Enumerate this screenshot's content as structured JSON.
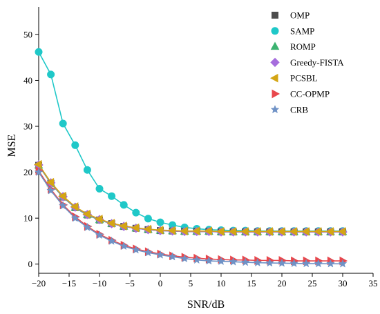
{
  "chart_data": {
    "type": "line",
    "title": "",
    "xlabel": "SNR/dB",
    "ylabel": "MSE",
    "xlim": [
      -20,
      35
    ],
    "ylim": [
      -2,
      56
    ],
    "xticks": [
      -20,
      -15,
      -10,
      -5,
      0,
      5,
      10,
      15,
      20,
      25,
      30,
      35
    ],
    "yticks": [
      0,
      10,
      20,
      30,
      40,
      50
    ],
    "grid": false,
    "legend_position": "top-right",
    "x": [
      -20,
      -18,
      -16,
      -14,
      -12,
      -10,
      -8,
      -6,
      -4,
      -2,
      0,
      2,
      4,
      6,
      8,
      10,
      12,
      14,
      16,
      18,
      20,
      22,
      24,
      26,
      28,
      30
    ],
    "series": [
      {
        "name": "OMP",
        "marker": "square",
        "color": "#4d4d4d",
        "values": [
          21.5,
          17.6,
          14.6,
          12.3,
          10.7,
          9.6,
          8.8,
          8.2,
          7.8,
          7.5,
          7.3,
          7.2,
          7.1,
          7.1,
          7.1,
          7.0,
          7.0,
          7.0,
          7.0,
          7.0,
          7.0,
          7.0,
          7.0,
          7.0,
          7.0,
          7.0
        ]
      },
      {
        "name": "SAMP",
        "marker": "circle",
        "color": "#1fc8c8",
        "values": [
          46.2,
          41.3,
          30.6,
          25.9,
          20.5,
          16.4,
          14.8,
          12.9,
          11.2,
          9.9,
          9.1,
          8.5,
          8.0,
          7.7,
          7.5,
          7.4,
          7.3,
          7.3,
          7.2,
          7.2,
          7.2,
          7.2,
          7.2,
          7.2,
          7.2,
          7.2
        ]
      },
      {
        "name": "ROMP",
        "marker": "triangle-up",
        "color": "#3cb371",
        "values": [
          21.5,
          17.6,
          14.6,
          12.3,
          10.7,
          9.6,
          8.8,
          8.2,
          7.8,
          7.5,
          7.3,
          7.2,
          7.1,
          7.1,
          7.1,
          7.0,
          7.0,
          7.0,
          7.0,
          7.0,
          7.0,
          7.0,
          7.0,
          7.0,
          7.0,
          7.0
        ]
      },
      {
        "name": "Greedy-FISTA",
        "marker": "diamond",
        "color": "#a66ddd",
        "values": [
          21.6,
          17.7,
          14.7,
          12.4,
          10.8,
          9.7,
          8.8,
          8.2,
          7.8,
          7.5,
          7.3,
          7.2,
          7.1,
          7.1,
          7.1,
          7.0,
          7.0,
          7.0,
          7.0,
          7.0,
          7.0,
          7.0,
          7.0,
          7.0,
          7.0,
          7.0
        ]
      },
      {
        "name": "PCSBL",
        "marker": "triangle-left",
        "color": "#d4a514",
        "values": [
          21.7,
          17.8,
          14.8,
          12.5,
          10.9,
          9.8,
          8.9,
          8.3,
          7.9,
          7.6,
          7.4,
          7.3,
          7.2,
          7.2,
          7.2,
          7.1,
          7.1,
          7.1,
          7.1,
          7.1,
          7.1,
          7.1,
          7.1,
          7.1,
          7.1,
          7.1
        ]
      },
      {
        "name": "CC-OPMP",
        "marker": "triangle-right",
        "color": "#e8474c",
        "values": [
          20.3,
          16.3,
          12.9,
          10.3,
          8.2,
          6.5,
          5.2,
          4.1,
          3.3,
          2.7,
          2.2,
          1.8,
          1.5,
          1.3,
          1.1,
          1.0,
          0.9,
          0.9,
          0.8,
          0.8,
          0.8,
          0.7,
          0.7,
          0.7,
          0.7,
          0.7
        ]
      },
      {
        "name": "CRB",
        "marker": "star",
        "color": "#6f92c6",
        "values": [
          20.0,
          16.0,
          12.7,
          10.0,
          8.0,
          6.3,
          5.0,
          3.9,
          3.1,
          2.5,
          2.0,
          1.6,
          1.2,
          0.9,
          0.7,
          0.6,
          0.5,
          0.4,
          0.3,
          0.25,
          0.2,
          0.15,
          0.12,
          0.1,
          0.08,
          0.06
        ]
      }
    ]
  }
}
